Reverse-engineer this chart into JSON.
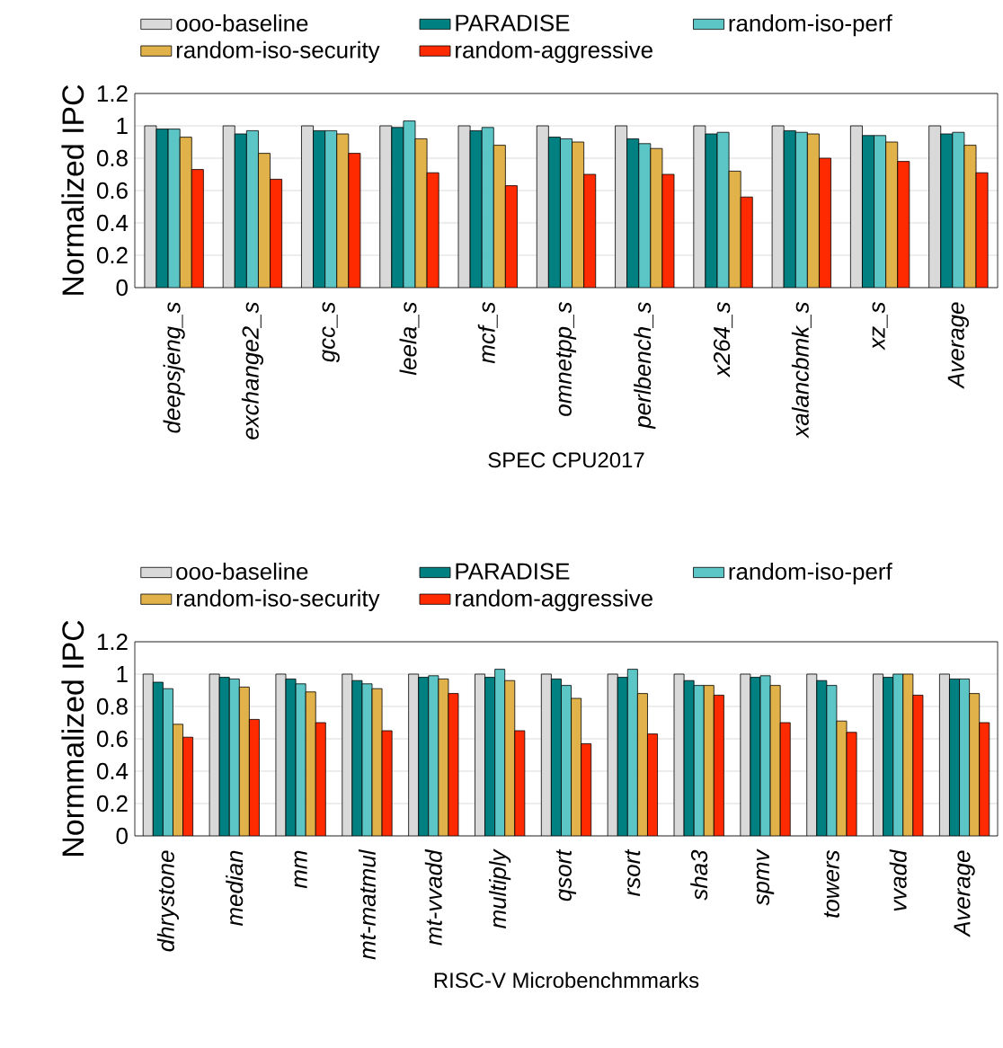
{
  "chart_data": [
    {
      "type": "bar",
      "xlabel": "SPEC CPU2017",
      "ylabel": "Normalized IPC",
      "categories": [
        "deepsjeng_s",
        "exchange2_s",
        "gcc_s",
        "leela_s",
        "mcf_s",
        "omnetpp_s",
        "perlbench_s",
        "x264_s",
        "xalancbmk_s",
        "xz_s",
        "Average"
      ],
      "series": [
        {
          "name": "ooo-baseline",
          "color": "#d9d9d9",
          "values": [
            1,
            1,
            1,
            1,
            1,
            1,
            1,
            1,
            1,
            1,
            1
          ]
        },
        {
          "name": "PARADISE",
          "color": "#008080",
          "values": [
            0.98,
            0.95,
            0.97,
            0.99,
            0.97,
            0.93,
            0.92,
            0.95,
            0.97,
            0.94,
            0.95
          ]
        },
        {
          "name": "random-iso-perf",
          "color": "#5cc6c6",
          "values": [
            0.98,
            0.97,
            0.97,
            1.03,
            0.99,
            0.92,
            0.89,
            0.96,
            0.96,
            0.94,
            0.96
          ]
        },
        {
          "name": "random-iso-security",
          "color": "#e2b24a",
          "values": [
            0.93,
            0.83,
            0.95,
            0.92,
            0.88,
            0.9,
            0.86,
            0.72,
            0.95,
            0.9,
            0.88
          ]
        },
        {
          "name": "random-aggressive",
          "color": "#ff2a00",
          "values": [
            0.73,
            0.67,
            0.83,
            0.71,
            0.63,
            0.7,
            0.7,
            0.56,
            0.8,
            0.78,
            0.71
          ]
        }
      ],
      "ylim": [
        0,
        1.2
      ],
      "yticks": [
        0,
        0.2,
        0.4,
        0.6,
        0.8,
        1,
        1.2
      ],
      "grid": "y",
      "legend": "top"
    },
    {
      "type": "bar",
      "xlabel": "RISC-V Microbenchmmarks",
      "ylabel": "Normmalized IPC",
      "categories": [
        "dhrystone",
        "median",
        "mm",
        "mt-matmul",
        "mt-vvadd",
        "multiply",
        "qsort",
        "rsort",
        "sha3",
        "spmv",
        "towers",
        "vvadd",
        "Average"
      ],
      "series": [
        {
          "name": "ooo-baseline",
          "color": "#d9d9d9",
          "values": [
            1,
            1,
            1,
            1,
            1,
            1,
            1,
            1,
            1,
            1,
            1,
            1,
            1
          ]
        },
        {
          "name": "PARADISE",
          "color": "#008080",
          "values": [
            0.95,
            0.98,
            0.97,
            0.96,
            0.98,
            0.98,
            0.97,
            0.98,
            0.96,
            0.98,
            0.96,
            0.98,
            0.97
          ]
        },
        {
          "name": "random-iso-perf",
          "color": "#5cc6c6",
          "values": [
            0.91,
            0.97,
            0.94,
            0.94,
            0.99,
            1.03,
            0.93,
            1.03,
            0.93,
            0.99,
            0.93,
            1.0,
            0.97
          ]
        },
        {
          "name": "random-iso-security",
          "color": "#e2b24a",
          "values": [
            0.69,
            0.92,
            0.89,
            0.91,
            0.97,
            0.96,
            0.85,
            0.88,
            0.93,
            0.93,
            0.71,
            1.0,
            0.88
          ]
        },
        {
          "name": "random-aggressive",
          "color": "#ff2a00",
          "values": [
            0.61,
            0.72,
            0.7,
            0.65,
            0.88,
            0.65,
            0.57,
            0.63,
            0.87,
            0.7,
            0.64,
            0.87,
            0.7
          ]
        }
      ],
      "ylim": [
        0,
        1.2
      ],
      "yticks": [
        0,
        0.2,
        0.4,
        0.6,
        0.8,
        1,
        1.2
      ],
      "grid": "y",
      "legend": "top"
    }
  ]
}
